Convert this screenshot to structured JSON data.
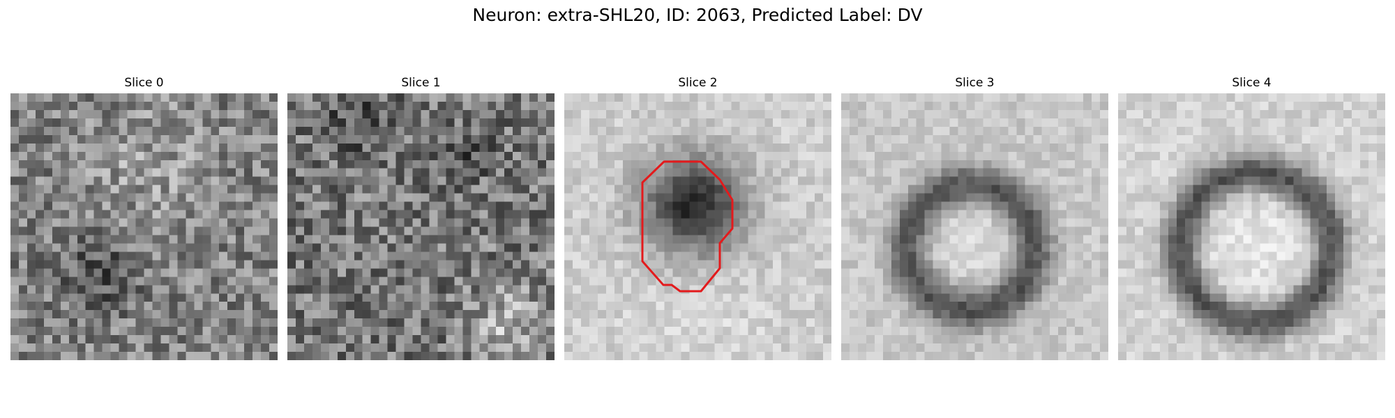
{
  "figure": {
    "title": "Neuron: extra-SHL20, ID: 2063, Predicted Label: DV"
  },
  "panels": [
    {
      "title": "Slice 0",
      "pattern": "noise-dark",
      "has_contour": false
    },
    {
      "title": "Slice 1",
      "pattern": "noise-mixed",
      "has_contour": false
    },
    {
      "title": "Slice 2",
      "pattern": "dark-blob",
      "has_contour": true
    },
    {
      "title": "Slice 3",
      "pattern": "ring",
      "has_contour": false
    },
    {
      "title": "Slice 4",
      "pattern": "ring-large",
      "has_contour": false
    }
  ],
  "contour_color": "#e31a1c"
}
